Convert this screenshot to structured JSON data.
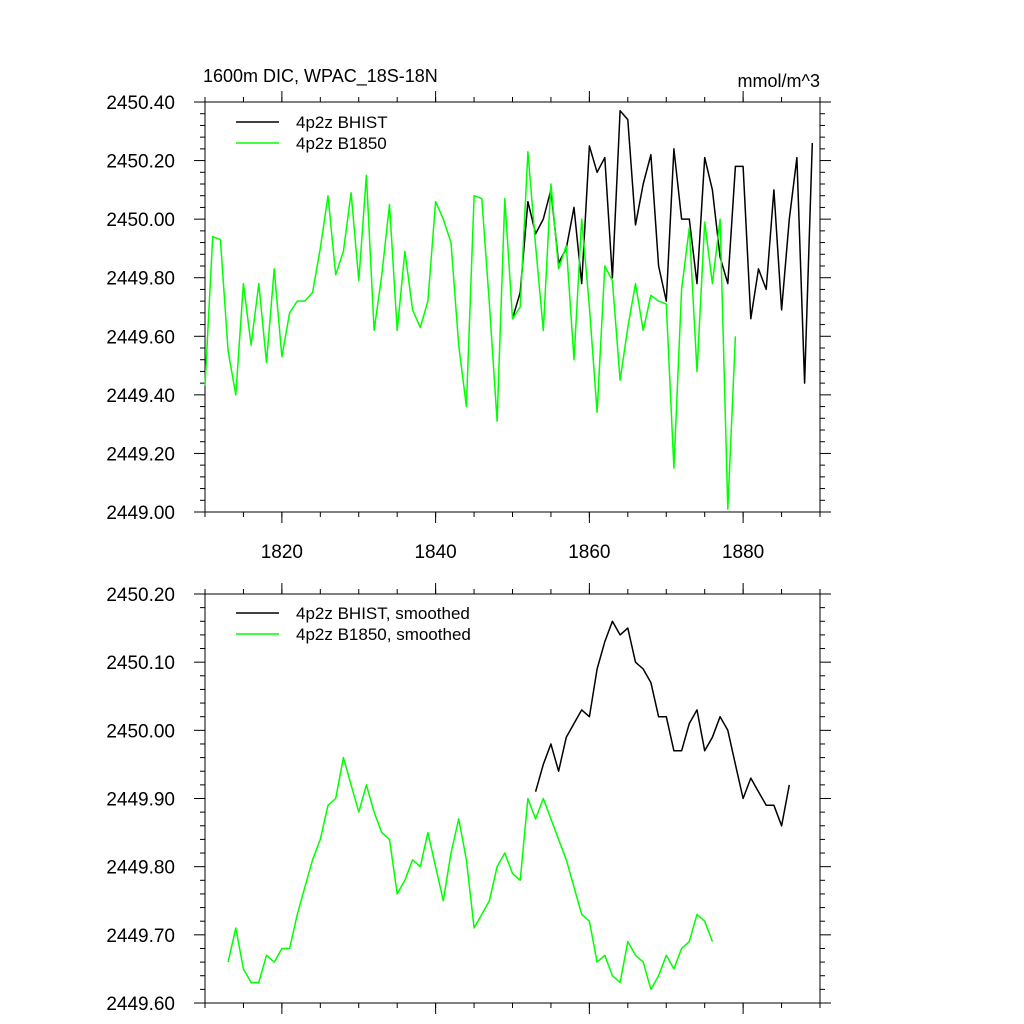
{
  "colors": {
    "bhist": "#000000",
    "b1850": "#00ff00",
    "axis": "#000000"
  },
  "chart_data": [
    {
      "type": "line",
      "title": "1600m DIC, WPAC_18S-18N",
      "units": "mmol/m^3",
      "xlim": [
        1810,
        1890
      ],
      "ylim": [
        2449.0,
        2450.4
      ],
      "xticks": [
        1820,
        1840,
        1860,
        1880
      ],
      "xtick_labels": [
        "1820",
        "1840",
        "1860",
        "1880"
      ],
      "yticks": [
        2449.0,
        2449.2,
        2449.4,
        2449.6,
        2449.8,
        2450.0,
        2450.2,
        2450.4
      ],
      "ytick_labels": [
        "2449.00",
        "2449.20",
        "2449.40",
        "2449.60",
        "2449.80",
        "2450.00",
        "2450.20",
        "2450.40"
      ],
      "legend": "top-left",
      "series": [
        {
          "name": "4p2z BHIST",
          "color": "#000000",
          "x": [
            1850,
            1851,
            1852,
            1853,
            1854,
            1855,
            1856,
            1857,
            1858,
            1859,
            1860,
            1861,
            1862,
            1863,
            1864,
            1865,
            1866,
            1867,
            1868,
            1869,
            1870,
            1871,
            1872,
            1873,
            1874,
            1875,
            1876,
            1877,
            1878,
            1879,
            1880,
            1881,
            1882,
            1883,
            1884,
            1885,
            1886,
            1887,
            1888,
            1889
          ],
          "values": [
            2449.66,
            2449.75,
            2450.06,
            2449.95,
            2450.0,
            2450.1,
            2449.85,
            2449.9,
            2450.04,
            2449.78,
            2450.25,
            2450.16,
            2450.21,
            2449.8,
            2450.37,
            2450.34,
            2449.98,
            2450.12,
            2450.22,
            2449.84,
            2449.72,
            2450.24,
            2450.0,
            2450.0,
            2449.78,
            2450.21,
            2450.1,
            2449.87,
            2449.78,
            2450.18,
            2450.18,
            2449.66,
            2449.83,
            2449.76,
            2450.1,
            2449.69,
            2450.0,
            2450.21,
            2449.44,
            2450.26
          ]
        },
        {
          "name": "4p2z B1850",
          "color": "#00ff00",
          "x": [
            1810,
            1811,
            1812,
            1813,
            1814,
            1815,
            1816,
            1817,
            1818,
            1819,
            1820,
            1821,
            1822,
            1823,
            1824,
            1825,
            1826,
            1827,
            1828,
            1829,
            1830,
            1831,
            1832,
            1833,
            1834,
            1835,
            1836,
            1837,
            1838,
            1839,
            1840,
            1841,
            1842,
            1843,
            1844,
            1845,
            1846,
            1847,
            1848,
            1849,
            1850,
            1851,
            1852,
            1853,
            1854,
            1855,
            1856,
            1857,
            1858,
            1859,
            1860,
            1861,
            1862,
            1863,
            1864,
            1865,
            1866,
            1867,
            1868,
            1869,
            1870,
            1871,
            1872,
            1873,
            1874,
            1875,
            1876,
            1877,
            1878,
            1879
          ],
          "values": [
            2449.43,
            2449.94,
            2449.93,
            2449.55,
            2449.4,
            2449.78,
            2449.57,
            2449.78,
            2449.51,
            2449.83,
            2449.53,
            2449.68,
            2449.72,
            2449.72,
            2449.75,
            2449.9,
            2450.08,
            2449.81,
            2449.89,
            2450.09,
            2449.79,
            2450.15,
            2449.62,
            2449.81,
            2450.05,
            2449.62,
            2449.89,
            2449.69,
            2449.63,
            2449.72,
            2450.06,
            2450.0,
            2449.92,
            2449.57,
            2449.36,
            2450.08,
            2450.07,
            2449.71,
            2449.31,
            2450.07,
            2449.66,
            2449.7,
            2450.23,
            2449.91,
            2449.62,
            2450.12,
            2449.83,
            2449.91,
            2449.52,
            2450.0,
            2449.7,
            2449.34,
            2449.84,
            2449.79,
            2449.45,
            2449.63,
            2449.78,
            2449.62,
            2449.74,
            2449.72,
            2449.71,
            2449.15,
            2449.76,
            2449.97,
            2449.48,
            2449.99,
            2449.78,
            2450.0,
            2449.01,
            2449.6
          ]
        }
      ]
    },
    {
      "type": "line",
      "title": "",
      "xlim": [
        1810,
        1890
      ],
      "ylim": [
        2449.6,
        2450.2
      ],
      "xticks": [
        1820,
        1840,
        1860,
        1880
      ],
      "yticks": [
        2449.6,
        2449.7,
        2449.8,
        2449.9,
        2450.0,
        2450.1,
        2450.2
      ],
      "ytick_labels": [
        "2449.60",
        "2449.70",
        "2449.80",
        "2449.90",
        "2450.00",
        "2450.10",
        "2450.20"
      ],
      "legend": "top-left",
      "series": [
        {
          "name": "4p2z BHIST, smoothed",
          "color": "#000000",
          "x": [
            1853,
            1854,
            1855,
            1856,
            1857,
            1858,
            1859,
            1860,
            1861,
            1862,
            1863,
            1864,
            1865,
            1866,
            1867,
            1868,
            1869,
            1870,
            1871,
            1872,
            1873,
            1874,
            1875,
            1876,
            1877,
            1878,
            1879,
            1880,
            1881,
            1882,
            1883,
            1884,
            1885,
            1886
          ],
          "values": [
            2449.91,
            2449.95,
            2449.98,
            2449.94,
            2449.99,
            2450.01,
            2450.03,
            2450.02,
            2450.09,
            2450.13,
            2450.16,
            2450.14,
            2450.15,
            2450.1,
            2450.09,
            2450.07,
            2450.02,
            2450.02,
            2449.97,
            2449.97,
            2450.01,
            2450.03,
            2449.97,
            2449.99,
            2450.02,
            2450.0,
            2449.95,
            2449.9,
            2449.93,
            2449.91,
            2449.89,
            2449.89,
            2449.86,
            2449.92
          ]
        },
        {
          "name": "4p2z B1850, smoothed",
          "color": "#00ff00",
          "x": [
            1813,
            1814,
            1815,
            1816,
            1817,
            1818,
            1819,
            1820,
            1821,
            1822,
            1823,
            1824,
            1825,
            1826,
            1827,
            1828,
            1829,
            1830,
            1831,
            1832,
            1833,
            1834,
            1835,
            1836,
            1837,
            1838,
            1839,
            1840,
            1841,
            1842,
            1843,
            1844,
            1845,
            1846,
            1847,
            1848,
            1849,
            1850,
            1851,
            1852,
            1853,
            1854,
            1855,
            1856,
            1857,
            1858,
            1859,
            1860,
            1861,
            1862,
            1863,
            1864,
            1865,
            1866,
            1867,
            1868,
            1869,
            1870,
            1871,
            1872,
            1873,
            1874,
            1875,
            1876
          ],
          "values": [
            2449.66,
            2449.71,
            2449.65,
            2449.63,
            2449.63,
            2449.67,
            2449.66,
            2449.68,
            2449.68,
            2449.73,
            2449.77,
            2449.81,
            2449.84,
            2449.89,
            2449.9,
            2449.96,
            2449.92,
            2449.88,
            2449.92,
            2449.88,
            2449.85,
            2449.84,
            2449.76,
            2449.78,
            2449.81,
            2449.8,
            2449.85,
            2449.8,
            2449.75,
            2449.82,
            2449.87,
            2449.81,
            2449.71,
            2449.73,
            2449.75,
            2449.8,
            2449.82,
            2449.79,
            2449.78,
            2449.9,
            2449.87,
            2449.9,
            2449.87,
            2449.84,
            2449.81,
            2449.77,
            2449.73,
            2449.72,
            2449.66,
            2449.67,
            2449.64,
            2449.63,
            2449.69,
            2449.67,
            2449.66,
            2449.62,
            2449.64,
            2449.67,
            2449.65,
            2449.68,
            2449.69,
            2449.73,
            2449.72,
            2449.69
          ]
        }
      ]
    }
  ]
}
